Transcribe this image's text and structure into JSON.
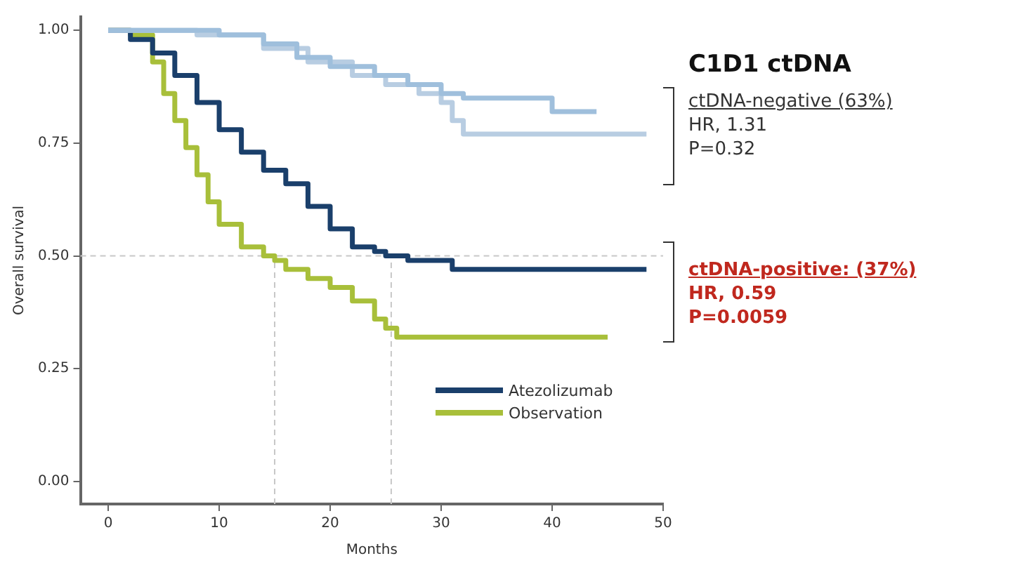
{
  "chart_data": {
    "type": "step",
    "title": "C1D1 ctDNA",
    "xlabel": "Months",
    "ylabel": "Overall survival",
    "xlim": [
      -2.5,
      50
    ],
    "xticks": [
      0,
      10,
      20,
      30,
      40,
      50
    ],
    "ylim": [
      -0.05,
      1.03
    ],
    "yticks": [
      {
        "value": 0,
        "label": "0.00"
      },
      {
        "value": 0.25,
        "label": "0.25"
      },
      {
        "value": 0.5,
        "label": "0.50"
      },
      {
        "value": 0.75,
        "label": "0.75"
      },
      {
        "value": 1,
        "label": "1.00"
      }
    ],
    "series": [
      {
        "color": "#9fbfdc",
        "x": [
          0,
          5,
          10,
          14,
          17,
          20,
          24,
          27,
          30,
          32,
          40,
          44
        ],
        "values": [
          1,
          1,
          0.99,
          0.97,
          0.94,
          0.92,
          0.9,
          0.88,
          0.86,
          0.85,
          0.82,
          0.82
        ]
      },
      {
        "color": "#b8cde2",
        "x": [
          0,
          8,
          14,
          18,
          22,
          25,
          28,
          30,
          31,
          32,
          48.5
        ],
        "values": [
          1,
          0.99,
          0.96,
          0.93,
          0.9,
          0.88,
          0.86,
          0.84,
          0.8,
          0.77,
          0.77
        ]
      },
      {
        "name": "Atezolizumab",
        "color": "#1a3f6b",
        "x": [
          0,
          2,
          4,
          6,
          8,
          10,
          12,
          14,
          16,
          18,
          20,
          22,
          24,
          25,
          27,
          31,
          40,
          48.5
        ],
        "values": [
          1,
          0.98,
          0.95,
          0.9,
          0.84,
          0.78,
          0.73,
          0.69,
          0.66,
          0.61,
          0.56,
          0.52,
          0.51,
          0.5,
          0.49,
          0.47,
          0.47,
          0.47
        ]
      },
      {
        "name": "Observation",
        "color": "#a8bf3a",
        "x": [
          0,
          2,
          4,
          5,
          6,
          7,
          8,
          9,
          10,
          12,
          14,
          15,
          16,
          18,
          20,
          22,
          24,
          25,
          26,
          30,
          45
        ],
        "values": [
          1,
          0.99,
          0.93,
          0.86,
          0.8,
          0.74,
          0.68,
          0.62,
          0.57,
          0.52,
          0.5,
          0.49,
          0.47,
          0.45,
          0.43,
          0.4,
          0.36,
          0.34,
          0.32,
          0.32,
          0.32
        ]
      }
    ],
    "ref_lines": [
      {
        "axis": "y",
        "value": 0.5,
        "color": "#c8c8c8",
        "line_style": "dashed"
      },
      {
        "axis": "x",
        "value": 15,
        "color": "#c8c8c8",
        "line_style": "dashed"
      },
      {
        "axis": "x",
        "value": 25.5,
        "color": "#c8c8c8",
        "line_style": "dashed"
      }
    ],
    "annotations": [
      "ctDNA-negative (63%)",
      "HR, 1.31",
      "P=0.32",
      "ctDNA-positive: (37%)",
      "HR, 0.59",
      "P=0.0059"
    ],
    "legend": "bottom right",
    "grid": false,
    "marker": "none",
    "line_style": "solid"
  }
}
